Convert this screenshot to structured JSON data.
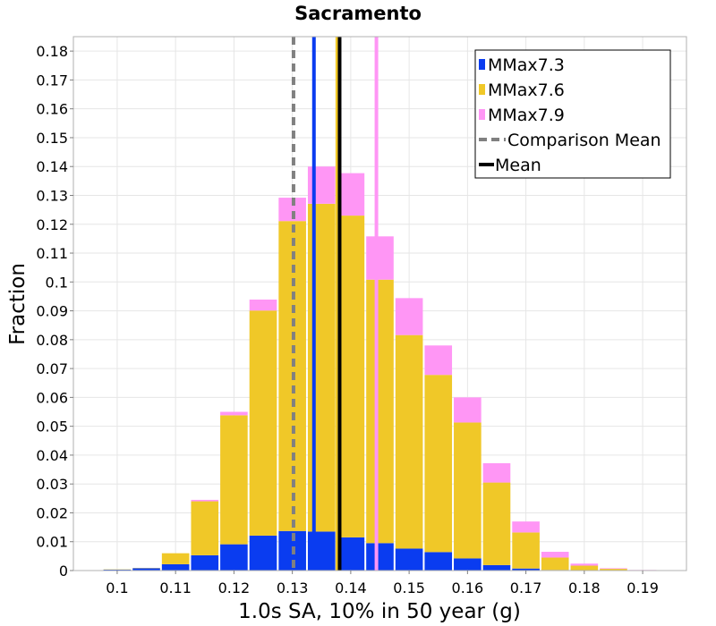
{
  "chart_data": {
    "type": "bar",
    "stacked": true,
    "title": "Sacramento",
    "xlabel": "1.0s SA, 10% in 50 year (g)",
    "ylabel": "Fraction",
    "xlim": [
      0.0925,
      0.1975
    ],
    "ylim": [
      0,
      0.185
    ],
    "grid": true,
    "legend_position": "top-right",
    "xticks": [
      "0.1",
      "0.11",
      "0.12",
      "0.13",
      "0.14",
      "0.15",
      "0.16",
      "0.17",
      "0.18",
      "0.19"
    ],
    "xtick_values": [
      0.1,
      0.11,
      0.12,
      0.13,
      0.14,
      0.15,
      0.16,
      0.17,
      0.18,
      0.19
    ],
    "yticks": [
      "0",
      "0.01",
      "0.02",
      "0.03",
      "0.04",
      "0.05",
      "0.06",
      "0.07",
      "0.08",
      "0.09",
      "0.1",
      "0.11",
      "0.12",
      "0.13",
      "0.14",
      "0.15",
      "0.16",
      "0.17",
      "0.18"
    ],
    "ytick_values": [
      0,
      0.01,
      0.02,
      0.03,
      0.04,
      0.05,
      0.06,
      0.07,
      0.08,
      0.09,
      0.1,
      0.11,
      0.12,
      0.13,
      0.14,
      0.15,
      0.16,
      0.17,
      0.18
    ],
    "bin_width": 0.005,
    "bin_centers": [
      0.1,
      0.105,
      0.11,
      0.115,
      0.12,
      0.125,
      0.13,
      0.135,
      0.14,
      0.145,
      0.15,
      0.155,
      0.16,
      0.165,
      0.17,
      0.175,
      0.18,
      0.185,
      0.19
    ],
    "series": [
      {
        "name": "MMax7.3",
        "color": "#0a3cf0",
        "values": [
          0.0003,
          0.0008,
          0.0022,
          0.0053,
          0.0091,
          0.0121,
          0.0137,
          0.0135,
          0.0115,
          0.0095,
          0.0076,
          0.0064,
          0.0042,
          0.0019,
          0.0007,
          0.0002,
          0.0001,
          0.0,
          0.0
        ]
      },
      {
        "name": "MMax7.6",
        "color": "#f0c828",
        "values": [
          0.0001,
          0.0001,
          0.0038,
          0.0187,
          0.0447,
          0.078,
          0.1074,
          0.1136,
          0.1115,
          0.0913,
          0.074,
          0.0614,
          0.0471,
          0.0286,
          0.0125,
          0.0043,
          0.0016,
          0.0006,
          0.0001
        ]
      },
      {
        "name": "MMax7.9",
        "color": "#ff96f5",
        "values": [
          0.0,
          0.0,
          0.0,
          0.0005,
          0.0012,
          0.0038,
          0.0081,
          0.0129,
          0.0147,
          0.015,
          0.0128,
          0.0102,
          0.0087,
          0.0067,
          0.0038,
          0.002,
          0.0007,
          0.0002,
          0.0001
        ]
      }
    ],
    "vertical_lines": [
      {
        "name": "MMax7.3 mean",
        "x": 0.1337,
        "color": "#0a3cf0",
        "style": "solid"
      },
      {
        "name": "MMax7.6 mean",
        "x": 0.1377,
        "color": "#f0c828",
        "style": "solid"
      },
      {
        "name": "MMax7.9 mean",
        "x": 0.1444,
        "color": "#ff96f5",
        "style": "solid"
      },
      {
        "name": "Comparison Mean",
        "x": 0.1302,
        "color": "#808080",
        "style": "dashed"
      },
      {
        "name": "Mean",
        "x": 0.1381,
        "color": "#000000",
        "style": "solid"
      }
    ],
    "legend": [
      {
        "label": "MMax7.3",
        "color": "#0a3cf0",
        "kind": "bar"
      },
      {
        "label": "MMax7.6",
        "color": "#f0c828",
        "kind": "bar"
      },
      {
        "label": "MMax7.9",
        "color": "#ff96f5",
        "kind": "bar"
      },
      {
        "label": "Comparison Mean",
        "color": "#808080",
        "kind": "dashed-line"
      },
      {
        "label": "Mean",
        "color": "#000000",
        "kind": "line"
      }
    ]
  }
}
